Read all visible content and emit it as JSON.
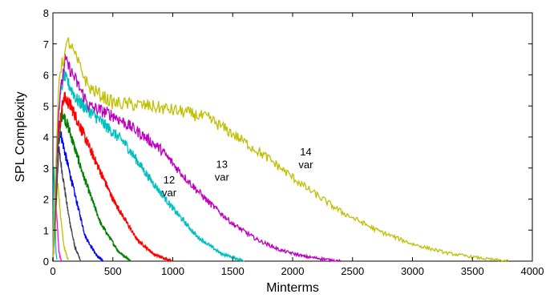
{
  "chart_data": {
    "type": "line",
    "title": "",
    "xlabel": "Minterms",
    "ylabel": "SPL Complexity",
    "xlim": [
      0,
      4000
    ],
    "ylim": [
      0,
      8
    ],
    "xticks": [
      0,
      500,
      1000,
      1500,
      2000,
      2500,
      3000,
      3500,
      4000
    ],
    "yticks": [
      0,
      1,
      2,
      3,
      4,
      5,
      6,
      7,
      8
    ],
    "grid": false,
    "legend": "none",
    "series": [
      {
        "color": "#00bfbf",
        "points": [
          [
            0,
            0
          ],
          [
            5,
            2.2
          ],
          [
            10,
            3.0
          ],
          [
            15,
            2.0
          ],
          [
            25,
            0.3
          ],
          [
            35,
            0
          ]
        ]
      },
      {
        "color": "#ff00ff",
        "points": [
          [
            0,
            0
          ],
          [
            10,
            1.0
          ],
          [
            20,
            2.6
          ],
          [
            30,
            1.6
          ],
          [
            50,
            0.3
          ],
          [
            70,
            0
          ]
        ]
      },
      {
        "color": "#bfbf00",
        "points": [
          [
            0,
            0
          ],
          [
            20,
            1.2
          ],
          [
            40,
            2.6
          ],
          [
            60,
            1.6
          ],
          [
            90,
            0.5
          ],
          [
            130,
            0
          ]
        ]
      },
      {
        "color": "#404040",
        "points": [
          [
            0,
            0
          ],
          [
            30,
            2.2
          ],
          [
            50,
            3.6
          ],
          [
            80,
            2.8
          ],
          [
            130,
            1.5
          ],
          [
            180,
            0.5
          ],
          [
            230,
            0
          ]
        ]
      },
      {
        "color": "#0000ff",
        "points": [
          [
            0,
            0
          ],
          [
            30,
            3.2
          ],
          [
            60,
            4.2
          ],
          [
            100,
            3.5
          ],
          [
            180,
            2.2
          ],
          [
            270,
            0.8
          ],
          [
            370,
            0.15
          ],
          [
            420,
            0
          ]
        ]
      },
      {
        "color": "#008000",
        "points": [
          [
            0,
            0
          ],
          [
            40,
            3.6
          ],
          [
            80,
            4.8
          ],
          [
            130,
            4.3
          ],
          [
            250,
            2.8
          ],
          [
            400,
            1.2
          ],
          [
            550,
            0.3
          ],
          [
            650,
            0
          ]
        ]
      },
      {
        "color": "#ff0000",
        "points": [
          [
            0,
            0
          ],
          [
            40,
            4.0
          ],
          [
            90,
            5.3
          ],
          [
            150,
            5.0
          ],
          [
            300,
            3.7
          ],
          [
            500,
            2.0
          ],
          [
            700,
            0.7
          ],
          [
            850,
            0.2
          ],
          [
            1000,
            0
          ]
        ]
      },
      {
        "color": "#00bfbf",
        "points": [
          [
            0,
            0
          ],
          [
            50,
            5.0
          ],
          [
            90,
            6.0
          ],
          [
            200,
            5.2
          ],
          [
            400,
            4.5
          ],
          [
            600,
            3.8
          ],
          [
            800,
            2.7
          ],
          [
            1000,
            1.7
          ],
          [
            1200,
            0.8
          ],
          [
            1400,
            0.25
          ],
          [
            1600,
            0
          ]
        ]
      },
      {
        "color": "#bf00bf",
        "points": [
          [
            0,
            0
          ],
          [
            50,
            5.0
          ],
          [
            100,
            6.5
          ],
          [
            300,
            5.0
          ],
          [
            500,
            4.7
          ],
          [
            700,
            4.2
          ],
          [
            900,
            3.6
          ],
          [
            1100,
            2.7
          ],
          [
            1300,
            1.9
          ],
          [
            1500,
            1.2
          ],
          [
            1700,
            0.7
          ],
          [
            1900,
            0.35
          ],
          [
            2100,
            0.15
          ],
          [
            2400,
            0
          ]
        ]
      },
      {
        "color": "#bfbf00",
        "points": [
          [
            0,
            0
          ],
          [
            50,
            6.0
          ],
          [
            130,
            7.1
          ],
          [
            300,
            5.6
          ],
          [
            500,
            5.1
          ],
          [
            800,
            5.0
          ],
          [
            1100,
            4.8
          ],
          [
            1300,
            4.6
          ],
          [
            1500,
            4.1
          ],
          [
            1800,
            3.3
          ],
          [
            2100,
            2.4
          ],
          [
            2400,
            1.6
          ],
          [
            2700,
            1.0
          ],
          [
            3000,
            0.55
          ],
          [
            3300,
            0.25
          ],
          [
            3600,
            0.08
          ],
          [
            3800,
            0
          ]
        ]
      }
    ],
    "annotations": [
      {
        "line1": "12",
        "line2": "var",
        "x": 970,
        "y": 2.3
      },
      {
        "line1": "13",
        "line2": "var",
        "x": 1410,
        "y": 2.8
      },
      {
        "line1": "14",
        "line2": "var",
        "x": 2110,
        "y": 3.2
      }
    ]
  }
}
